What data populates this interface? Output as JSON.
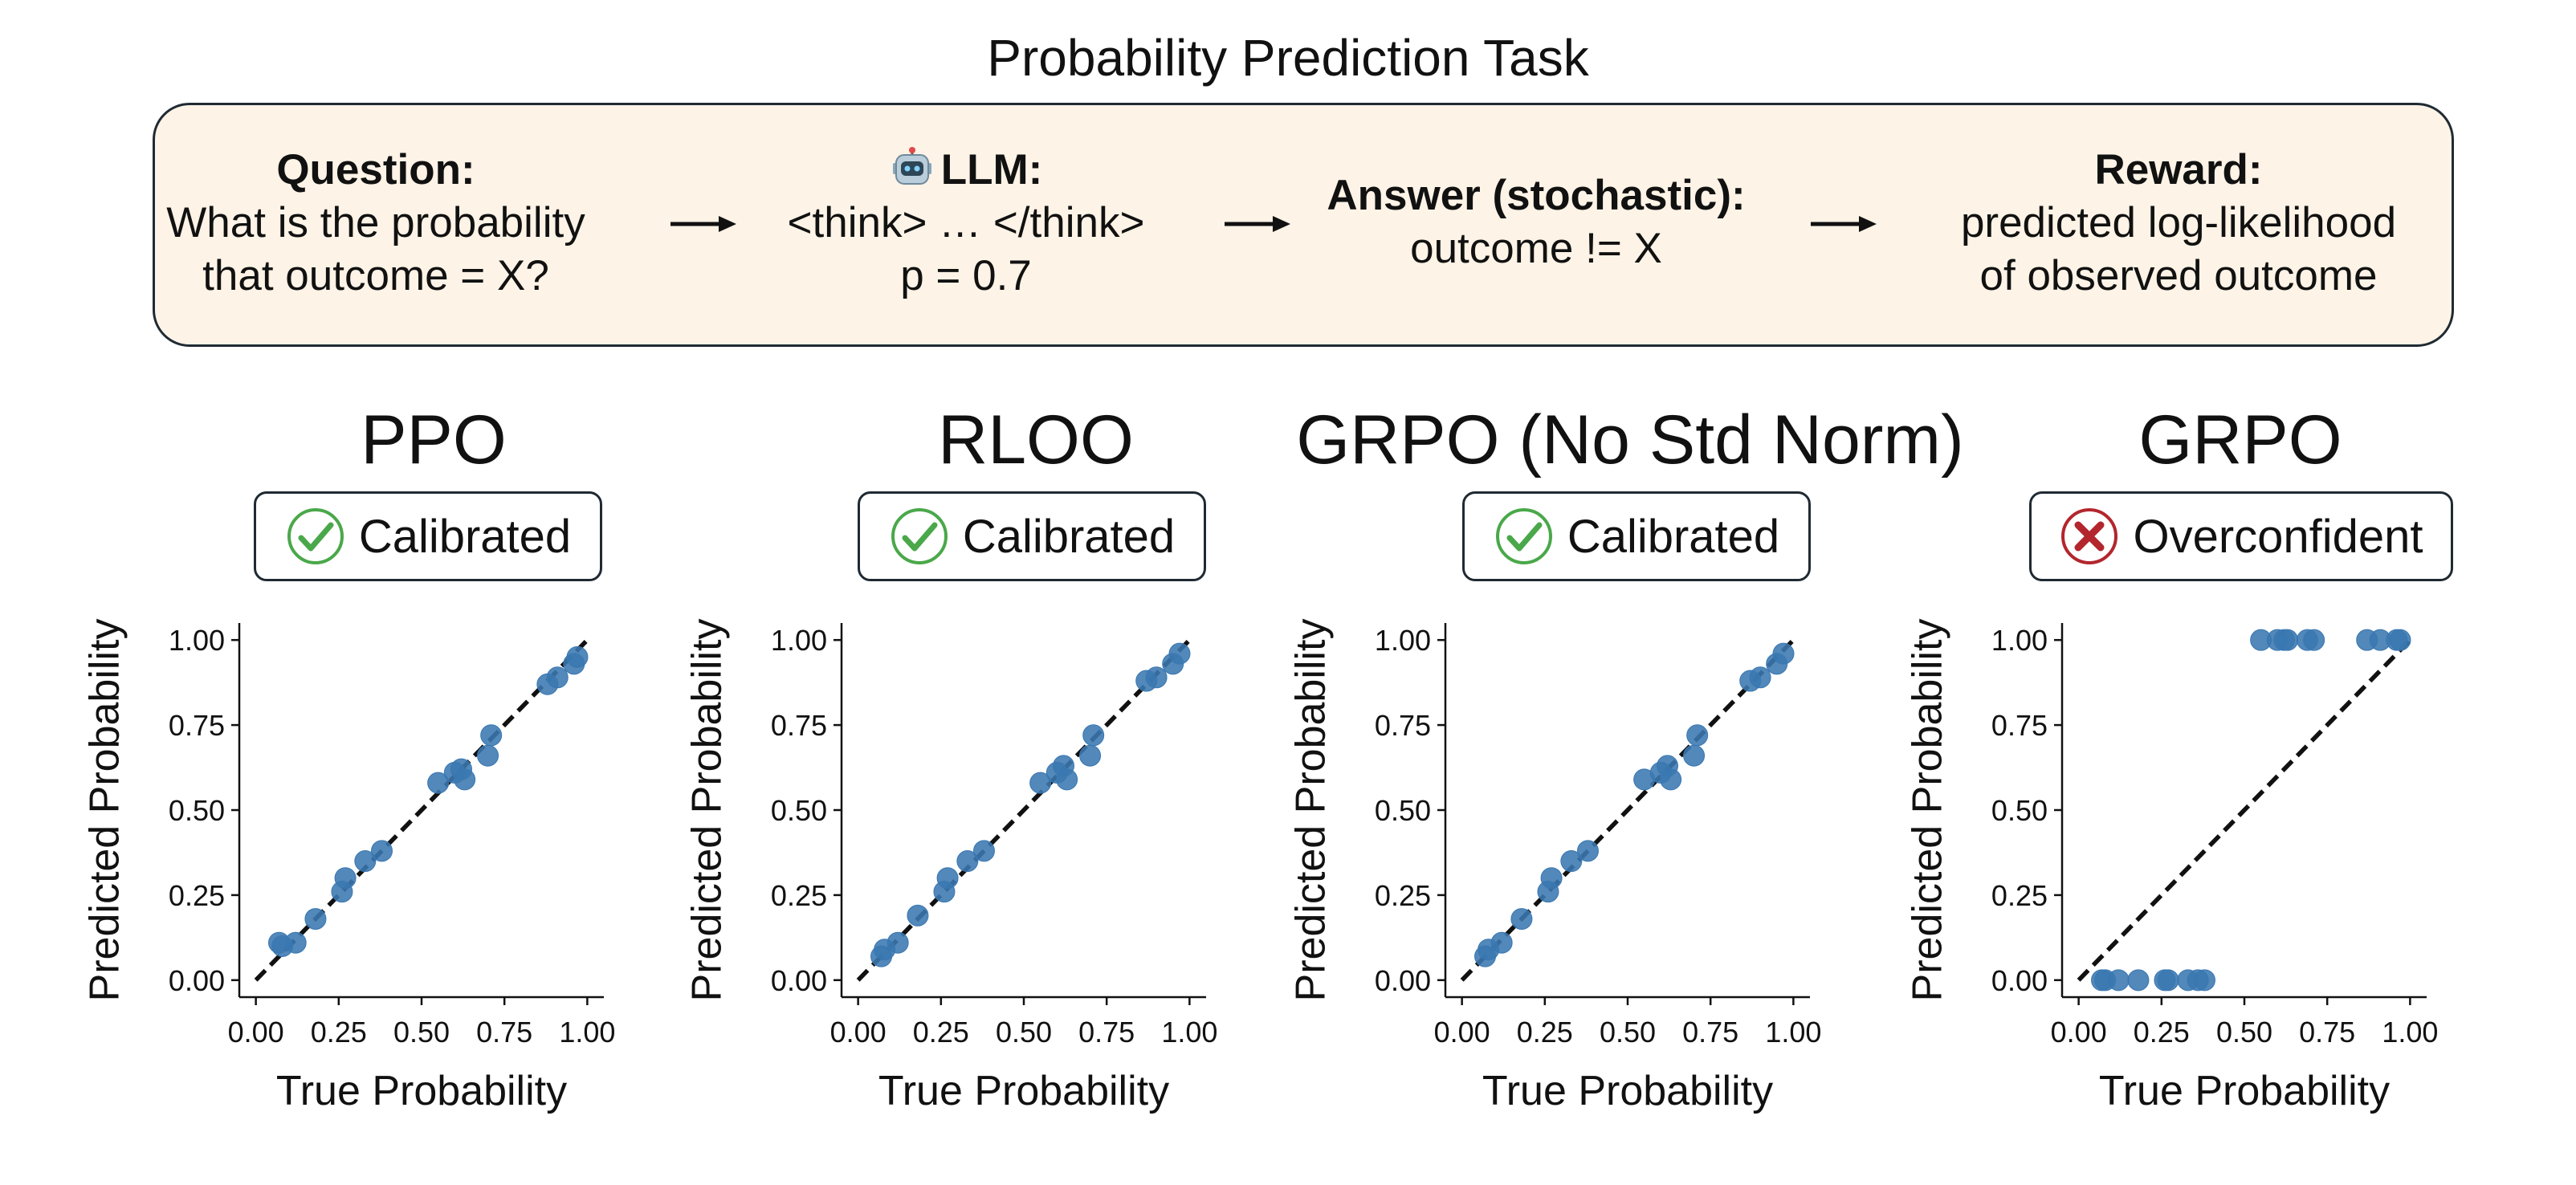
{
  "title": "Probability Prediction Task",
  "pipeline": {
    "question": {
      "header": "Question:",
      "lines": [
        "What is the probability",
        "that outcome = X?"
      ]
    },
    "llm": {
      "icon": "robot-icon",
      "header": "LLM:",
      "lines": [
        "<think> … </think>",
        "p = 0.7"
      ]
    },
    "answer": {
      "header": "Answer (stochastic):",
      "lines": [
        "outcome != X"
      ]
    },
    "reward": {
      "header": "Reward:",
      "lines": [
        "predicted log-likelihood",
        "of observed outcome"
      ]
    }
  },
  "colors": {
    "point": "#3a77b1",
    "box_bg": "#fdf3e6",
    "check": "#4aa84a",
    "cross": "#b3262d"
  },
  "chart_data": [
    {
      "type": "scatter",
      "title": "PPO",
      "badge": {
        "status": "check",
        "label": "Calibrated"
      },
      "xlabel": "True Probability",
      "ylabel": "Predicted Probability",
      "xlim": [
        -0.05,
        1.05
      ],
      "ylim": [
        -0.05,
        1.05
      ],
      "xticks": [
        "0.00",
        "0.25",
        "0.50",
        "0.75",
        "1.00"
      ],
      "yticks": [
        "0.00",
        "0.25",
        "0.50",
        "0.75",
        "1.00"
      ],
      "reference_line": "y = x (dashed)",
      "x": [
        0.07,
        0.08,
        0.12,
        0.18,
        0.26,
        0.27,
        0.33,
        0.38,
        0.55,
        0.6,
        0.62,
        0.63,
        0.7,
        0.71,
        0.88,
        0.91,
        0.96,
        0.97
      ],
      "y": [
        0.11,
        0.1,
        0.11,
        0.18,
        0.26,
        0.3,
        0.35,
        0.38,
        0.58,
        0.61,
        0.62,
        0.59,
        0.66,
        0.72,
        0.87,
        0.89,
        0.93,
        0.95
      ]
    },
    {
      "type": "scatter",
      "title": "RLOO",
      "badge": {
        "status": "check",
        "label": "Calibrated"
      },
      "xlabel": "True Probability",
      "ylabel": "Predicted Probability",
      "xlim": [
        -0.05,
        1.05
      ],
      "ylim": [
        -0.05,
        1.05
      ],
      "xticks": [
        "0.00",
        "0.25",
        "0.50",
        "0.75",
        "1.00"
      ],
      "yticks": [
        "0.00",
        "0.25",
        "0.50",
        "0.75",
        "1.00"
      ],
      "reference_line": "y = x (dashed)",
      "x": [
        0.07,
        0.08,
        0.12,
        0.18,
        0.26,
        0.27,
        0.33,
        0.38,
        0.55,
        0.6,
        0.62,
        0.63,
        0.7,
        0.71,
        0.87,
        0.9,
        0.95,
        0.97
      ],
      "y": [
        0.07,
        0.09,
        0.11,
        0.19,
        0.26,
        0.3,
        0.35,
        0.38,
        0.58,
        0.61,
        0.63,
        0.59,
        0.66,
        0.72,
        0.88,
        0.89,
        0.93,
        0.96
      ]
    },
    {
      "type": "scatter",
      "title": "GRPO (No Std Norm)",
      "badge": {
        "status": "check",
        "label": "Calibrated"
      },
      "xlabel": "True Probability",
      "ylabel": "Predicted Probability",
      "xlim": [
        -0.05,
        1.05
      ],
      "ylim": [
        -0.05,
        1.05
      ],
      "xticks": [
        "0.00",
        "0.25",
        "0.50",
        "0.75",
        "1.00"
      ],
      "yticks": [
        "0.00",
        "0.25",
        "0.50",
        "0.75",
        "1.00"
      ],
      "reference_line": "y = x (dashed)",
      "x": [
        0.07,
        0.08,
        0.12,
        0.18,
        0.26,
        0.27,
        0.33,
        0.38,
        0.55,
        0.6,
        0.62,
        0.63,
        0.7,
        0.71,
        0.87,
        0.9,
        0.95,
        0.97
      ],
      "y": [
        0.07,
        0.09,
        0.11,
        0.18,
        0.26,
        0.3,
        0.35,
        0.38,
        0.59,
        0.61,
        0.63,
        0.59,
        0.66,
        0.72,
        0.88,
        0.89,
        0.93,
        0.96
      ]
    },
    {
      "type": "scatter",
      "title": "GRPO",
      "badge": {
        "status": "cross",
        "label": "Overconfident"
      },
      "xlabel": "True Probability",
      "ylabel": "Predicted Probability",
      "xlim": [
        -0.05,
        1.05
      ],
      "ylim": [
        -0.05,
        1.05
      ],
      "xticks": [
        "0.00",
        "0.25",
        "0.50",
        "0.75",
        "1.00"
      ],
      "yticks": [
        "0.00",
        "0.25",
        "0.50",
        "0.75",
        "1.00"
      ],
      "reference_line": "y = x (dashed)",
      "x": [
        0.07,
        0.08,
        0.12,
        0.18,
        0.26,
        0.27,
        0.33,
        0.36,
        0.38,
        0.55,
        0.6,
        0.62,
        0.63,
        0.69,
        0.71,
        0.87,
        0.91,
        0.96,
        0.97
      ],
      "y": [
        0.0,
        0.0,
        0.0,
        0.0,
        0.0,
        0.0,
        0.0,
        0.0,
        0.0,
        1.0,
        1.0,
        1.0,
        1.0,
        1.0,
        1.0,
        1.0,
        1.0,
        1.0,
        1.0
      ]
    }
  ]
}
